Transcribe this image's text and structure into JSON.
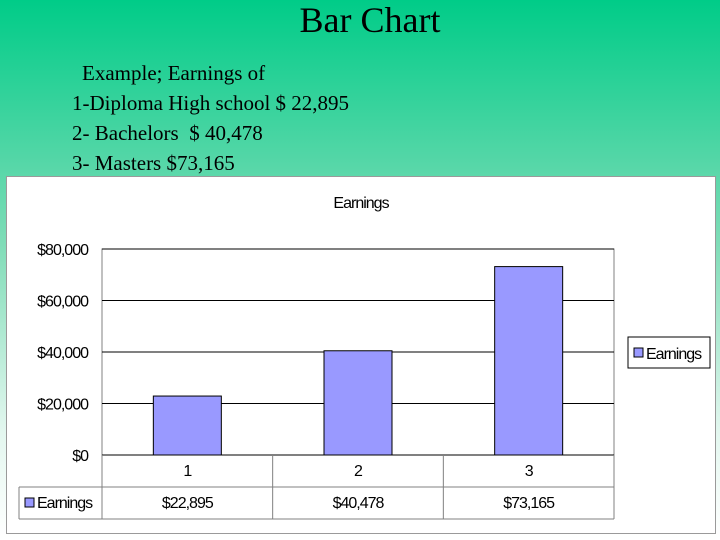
{
  "slide": {
    "title": "Bar Chart",
    "lines": [
      "Example; Earnings of",
      "1-Diploma High school $ 22,895",
      "2- Bachelors  $ 40,478",
      "3- Masters $73,165"
    ]
  },
  "chart_data": {
    "type": "bar",
    "title": "Earnings",
    "categories": [
      "1",
      "2",
      "3"
    ],
    "series": [
      {
        "name": "Earnings",
        "values": [
          22895,
          40478,
          73165
        ]
      }
    ],
    "value_labels": [
      "$22,895",
      "$40,478",
      "$73,165"
    ],
    "yticks": [
      0,
      20000,
      40000,
      60000,
      80000
    ],
    "ytick_labels": [
      "$0",
      "$20,000",
      "$40,000",
      "$60,000",
      "$80,000"
    ],
    "ylim": [
      0,
      80000
    ],
    "grid": true,
    "legend": "right",
    "data_table": true,
    "colors": {
      "bar": "#9999ff",
      "bar_edge": "#000000",
      "grid": "#000000",
      "plot_border": "#808080"
    }
  }
}
